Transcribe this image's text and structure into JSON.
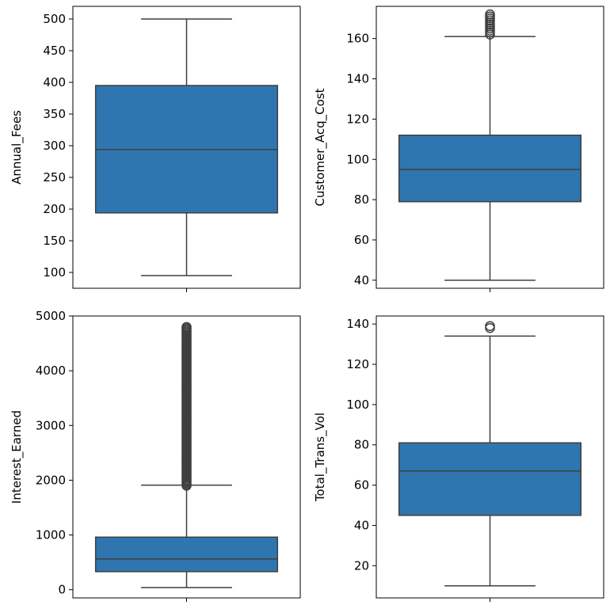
{
  "chart_data": [
    {
      "type": "box",
      "ylabel": "Annual_Fees",
      "ylim": [
        75,
        520
      ],
      "yticks": [
        100,
        150,
        200,
        250,
        300,
        350,
        400,
        450,
        500
      ],
      "box": {
        "whisker_low": 95,
        "q1": 194,
        "median": 294,
        "q3": 395,
        "whisker_high": 500
      },
      "outliers": [],
      "color": "#2f76b0"
    },
    {
      "type": "box",
      "ylabel": "Customer_Acq_Cost",
      "ylim": [
        36,
        176
      ],
      "yticks": [
        40,
        60,
        80,
        100,
        120,
        140,
        160
      ],
      "box": {
        "whisker_low": 40,
        "q1": 79,
        "median": 95,
        "q3": 112,
        "whisker_high": 161
      },
      "outliers": [
        162,
        163,
        164,
        165,
        166,
        167,
        168,
        169,
        170,
        171,
        172
      ],
      "color": "#2f76b0"
    },
    {
      "type": "box",
      "ylabel": "Interest_Earned",
      "ylim": [
        -150,
        5000
      ],
      "yticks": [
        0,
        1000,
        2000,
        3000,
        4000,
        5000
      ],
      "box": {
        "whisker_low": 40,
        "q1": 330,
        "median": 560,
        "q3": 960,
        "whisker_high": 1910
      },
      "outlier_range": [
        1900,
        4800
      ],
      "color": "#2f76b0"
    },
    {
      "type": "box",
      "ylabel": "Total_Trans_Vol",
      "ylim": [
        4,
        144
      ],
      "yticks": [
        20,
        40,
        60,
        80,
        100,
        120,
        140
      ],
      "box": {
        "whisker_low": 10,
        "q1": 45,
        "median": 67,
        "q3": 81,
        "whisker_high": 134
      },
      "outliers": [
        138,
        139
      ],
      "color": "#2f76b0"
    }
  ]
}
